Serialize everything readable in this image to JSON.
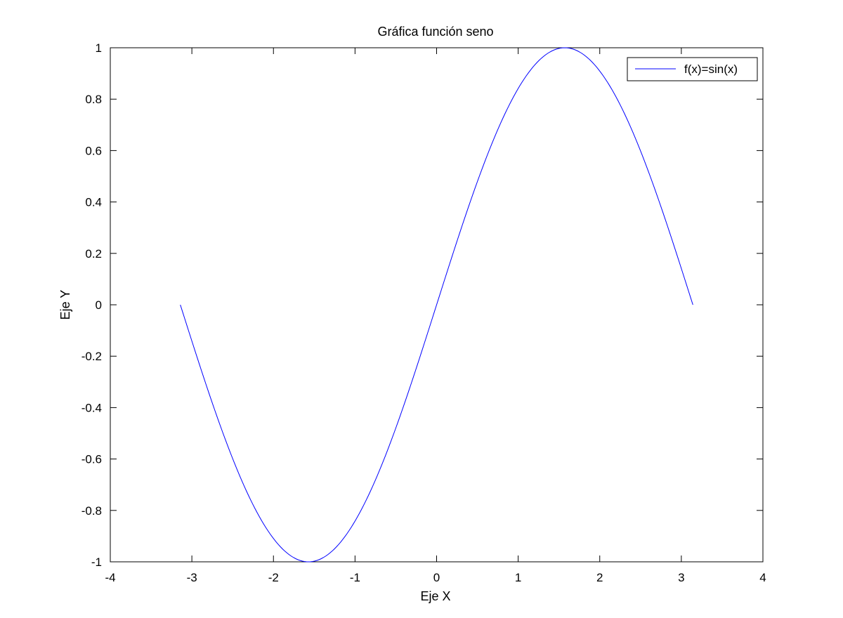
{
  "chart_data": {
    "type": "line",
    "title": "Gráfica función seno",
    "xlabel": "Eje X",
    "ylabel": "Eje Y",
    "xlim": [
      -4,
      4
    ],
    "ylim": [
      -1,
      1
    ],
    "xticks": [
      -4,
      -3,
      -2,
      -1,
      0,
      1,
      2,
      3,
      4
    ],
    "yticks": [
      -1,
      -0.8,
      -0.6,
      -0.4,
      -0.2,
      0,
      0.2,
      0.4,
      0.6,
      0.8,
      1
    ],
    "xtick_labels": [
      "-4",
      "-3",
      "-2",
      "-1",
      "0",
      "1",
      "2",
      "3",
      "4"
    ],
    "ytick_labels": [
      "-1",
      "-0.8",
      "-0.6",
      "-0.4",
      "-0.2",
      "0",
      "0.2",
      "0.4",
      "0.6",
      "0.8",
      "1"
    ],
    "grid": false,
    "legend_position": "top-right",
    "series": [
      {
        "name": "f(x)=sin(x)",
        "color": "#0000ff",
        "function": "sin(x)",
        "x_range": [
          -3.1416,
          3.1416
        ],
        "x": [
          -3.1416,
          -2.8274,
          -2.5133,
          -2.1991,
          -1.885,
          -1.5708,
          -1.2566,
          -0.9425,
          -0.6283,
          -0.3142,
          0,
          0.3142,
          0.6283,
          0.9425,
          1.2566,
          1.5708,
          1.885,
          2.1991,
          2.5133,
          2.8274,
          3.1416
        ],
        "y": [
          0,
          -0.309,
          -0.5878,
          -0.809,
          -0.9511,
          -1,
          -0.9511,
          -0.809,
          -0.5878,
          -0.309,
          0,
          0.309,
          0.5878,
          0.809,
          0.9511,
          1,
          0.9511,
          0.809,
          0.5878,
          0.309,
          0
        ]
      }
    ]
  }
}
